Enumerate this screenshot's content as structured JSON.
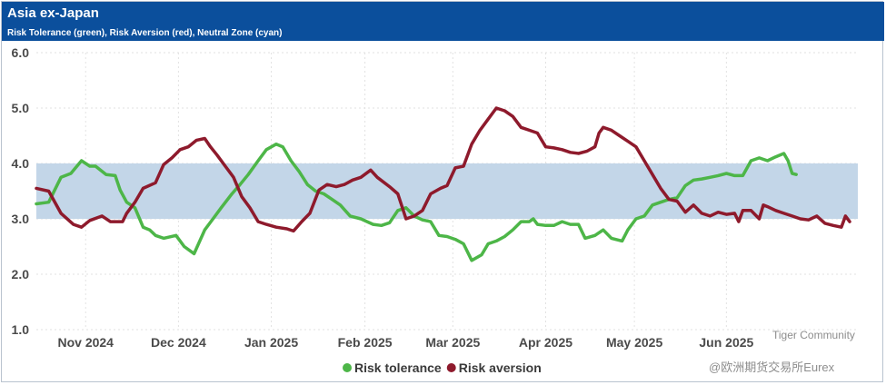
{
  "header": {
    "title": "Asia ex-Japan",
    "subtitle": "Risk Tolerance (green), Risk Aversion (red), Neutral Zone (cyan)"
  },
  "colors": {
    "header_bg": "#0b4f9c",
    "risk_tolerance": "#4db648",
    "risk_aversion": "#8e1a2c",
    "neutral_zone": "#c3d6e8"
  },
  "watermark": {
    "line1": "Tiger Community",
    "line2": "@欧洲期货交易所Eurex"
  },
  "chart_data": {
    "type": "line",
    "title": "Asia ex-Japan",
    "subtitle": "Risk Tolerance (green), Risk Aversion (red), Neutral Zone (cyan)",
    "xlabel": "",
    "ylabel": "",
    "ylim": [
      1.0,
      6.0
    ],
    "yticks": [
      1.0,
      2.0,
      3.0,
      4.0,
      5.0,
      6.0
    ],
    "ytick_labels": [
      "1.0",
      "2.0",
      "3.0",
      "4.0",
      "5.0",
      "6.0"
    ],
    "xlim": [
      0,
      100
    ],
    "xticks": [
      {
        "x": 6,
        "label": "Nov 2024"
      },
      {
        "x": 17.3,
        "label": "Dec 2024"
      },
      {
        "x": 28.6,
        "label": "Jan 2025"
      },
      {
        "x": 40.0,
        "label": "Feb 2025"
      },
      {
        "x": 50.7,
        "label": "Mar 2025"
      },
      {
        "x": 62.0,
        "label": "Apr 2025"
      },
      {
        "x": 72.8,
        "label": "May 2025"
      },
      {
        "x": 84.0,
        "label": "Jun 2025"
      }
    ],
    "grid": true,
    "legend_position": "bottom",
    "neutral_zone": {
      "low": 3.0,
      "high": 4.0,
      "label": "Neutral Zone"
    },
    "series": [
      {
        "name": "Risk tolerance",
        "color": "#4db648",
        "points": [
          [
            0,
            3.27
          ],
          [
            1.5,
            3.3
          ],
          [
            3,
            3.75
          ],
          [
            4.2,
            3.82
          ],
          [
            5.5,
            4.05
          ],
          [
            6.5,
            3.95
          ],
          [
            7.2,
            3.95
          ],
          [
            8.5,
            3.8
          ],
          [
            9.6,
            3.78
          ],
          [
            10.2,
            3.52
          ],
          [
            11,
            3.3
          ],
          [
            12,
            3.2
          ],
          [
            13,
            2.85
          ],
          [
            13.8,
            2.8
          ],
          [
            14.5,
            2.7
          ],
          [
            15.5,
            2.65
          ],
          [
            17,
            2.7
          ],
          [
            18,
            2.5
          ],
          [
            19.2,
            2.37
          ],
          [
            20.5,
            2.8
          ],
          [
            21.5,
            3.0
          ],
          [
            22.5,
            3.2
          ],
          [
            23.8,
            3.45
          ],
          [
            24.8,
            3.62
          ],
          [
            25.8,
            3.8
          ],
          [
            27,
            4.05
          ],
          [
            28,
            4.25
          ],
          [
            29.2,
            4.35
          ],
          [
            30,
            4.3
          ],
          [
            31,
            4.05
          ],
          [
            32,
            3.85
          ],
          [
            33,
            3.62
          ],
          [
            34,
            3.5
          ],
          [
            35,
            3.45
          ],
          [
            36,
            3.35
          ],
          [
            37,
            3.25
          ],
          [
            38.2,
            3.05
          ],
          [
            39.5,
            3.0
          ],
          [
            41,
            2.9
          ],
          [
            42,
            2.88
          ],
          [
            43,
            2.93
          ],
          [
            44,
            3.15
          ],
          [
            45,
            3.2
          ],
          [
            46,
            3.05
          ],
          [
            47,
            2.98
          ],
          [
            48,
            2.95
          ],
          [
            49,
            2.7
          ],
          [
            50,
            2.68
          ],
          [
            51,
            2.63
          ],
          [
            52,
            2.55
          ],
          [
            53,
            2.25
          ],
          [
            54.2,
            2.35
          ],
          [
            55,
            2.55
          ],
          [
            56,
            2.6
          ],
          [
            57,
            2.68
          ],
          [
            58,
            2.8
          ],
          [
            59,
            2.95
          ],
          [
            60,
            2.95
          ],
          [
            60.5,
            3.0
          ],
          [
            61,
            2.9
          ],
          [
            62,
            2.88
          ],
          [
            63,
            2.88
          ],
          [
            64,
            2.95
          ],
          [
            65,
            2.9
          ],
          [
            66,
            2.9
          ],
          [
            66.8,
            2.65
          ],
          [
            68,
            2.7
          ],
          [
            69,
            2.8
          ],
          [
            70,
            2.65
          ],
          [
            71.3,
            2.6
          ],
          [
            72,
            2.8
          ],
          [
            73,
            3.0
          ],
          [
            74,
            3.05
          ],
          [
            75,
            3.25
          ],
          [
            76,
            3.3
          ],
          [
            77,
            3.35
          ],
          [
            78,
            3.38
          ],
          [
            79,
            3.6
          ],
          [
            80,
            3.7
          ],
          [
            81,
            3.72
          ],
          [
            82,
            3.75
          ],
          [
            83,
            3.78
          ],
          [
            84,
            3.82
          ],
          [
            85,
            3.78
          ],
          [
            86,
            3.78
          ],
          [
            87,
            4.05
          ],
          [
            88,
            4.1
          ],
          [
            89,
            4.05
          ],
          [
            90,
            4.12
          ],
          [
            91,
            4.18
          ],
          [
            91.5,
            4.05
          ],
          [
            92,
            3.82
          ],
          [
            92.5,
            3.8
          ]
        ]
      },
      {
        "name": "Risk aversion",
        "color": "#8e1a2c",
        "points": [
          [
            0,
            3.55
          ],
          [
            1.5,
            3.5
          ],
          [
            3,
            3.1
          ],
          [
            4.5,
            2.9
          ],
          [
            5.5,
            2.85
          ],
          [
            6.5,
            2.97
          ],
          [
            8,
            3.05
          ],
          [
            9,
            2.95
          ],
          [
            10.5,
            2.95
          ],
          [
            11,
            3.1
          ],
          [
            12,
            3.3
          ],
          [
            13,
            3.55
          ],
          [
            14.5,
            3.65
          ],
          [
            15.5,
            3.98
          ],
          [
            16.5,
            4.1
          ],
          [
            17.5,
            4.25
          ],
          [
            18.5,
            4.3
          ],
          [
            19.5,
            4.42
          ],
          [
            20.5,
            4.45
          ],
          [
            21.2,
            4.3
          ],
          [
            22,
            4.15
          ],
          [
            23,
            3.95
          ],
          [
            24,
            3.75
          ],
          [
            25,
            3.4
          ],
          [
            26,
            3.2
          ],
          [
            27,
            2.95
          ],
          [
            28,
            2.9
          ],
          [
            29.2,
            2.85
          ],
          [
            30.5,
            2.82
          ],
          [
            31.3,
            2.78
          ],
          [
            32.3,
            2.95
          ],
          [
            33.3,
            3.1
          ],
          [
            34.4,
            3.52
          ],
          [
            35.4,
            3.62
          ],
          [
            36.5,
            3.58
          ],
          [
            37.5,
            3.62
          ],
          [
            38.5,
            3.7
          ],
          [
            39.5,
            3.75
          ],
          [
            40.7,
            3.88
          ],
          [
            41.5,
            3.75
          ],
          [
            43,
            3.58
          ],
          [
            44,
            3.45
          ],
          [
            45,
            3.0
          ],
          [
            46,
            3.05
          ],
          [
            47,
            3.15
          ],
          [
            48,
            3.45
          ],
          [
            49.2,
            3.55
          ],
          [
            50,
            3.6
          ],
          [
            51,
            3.92
          ],
          [
            52,
            3.95
          ],
          [
            53,
            4.35
          ],
          [
            54,
            4.6
          ],
          [
            55,
            4.8
          ],
          [
            56,
            5.0
          ],
          [
            57,
            4.95
          ],
          [
            58,
            4.85
          ],
          [
            59,
            4.65
          ],
          [
            60,
            4.6
          ],
          [
            61,
            4.55
          ],
          [
            62,
            4.3
          ],
          [
            63,
            4.28
          ],
          [
            64,
            4.25
          ],
          [
            65,
            4.2
          ],
          [
            66,
            4.18
          ],
          [
            67,
            4.22
          ],
          [
            68,
            4.3
          ],
          [
            68.5,
            4.55
          ],
          [
            69,
            4.65
          ],
          [
            70,
            4.6
          ],
          [
            71,
            4.5
          ],
          [
            72,
            4.4
          ],
          [
            73,
            4.3
          ],
          [
            74,
            4.05
          ],
          [
            75,
            3.8
          ],
          [
            76,
            3.55
          ],
          [
            77,
            3.35
          ],
          [
            78,
            3.32
          ],
          [
            79,
            3.12
          ],
          [
            80,
            3.25
          ],
          [
            81,
            3.1
          ],
          [
            82,
            3.05
          ],
          [
            83,
            3.12
          ],
          [
            84,
            3.08
          ],
          [
            85,
            3.1
          ],
          [
            85.5,
            2.95
          ],
          [
            86,
            3.15
          ],
          [
            87,
            3.15
          ],
          [
            88,
            3.0
          ],
          [
            88.5,
            3.25
          ],
          [
            89,
            3.22
          ],
          [
            90,
            3.15
          ],
          [
            91,
            3.1
          ],
          [
            92,
            3.05
          ],
          [
            93,
            3.0
          ],
          [
            94,
            2.98
          ],
          [
            95,
            3.05
          ],
          [
            96,
            2.92
          ],
          [
            97,
            2.88
          ],
          [
            98,
            2.85
          ],
          [
            98.5,
            3.05
          ],
          [
            99,
            2.95
          ]
        ]
      }
    ]
  }
}
